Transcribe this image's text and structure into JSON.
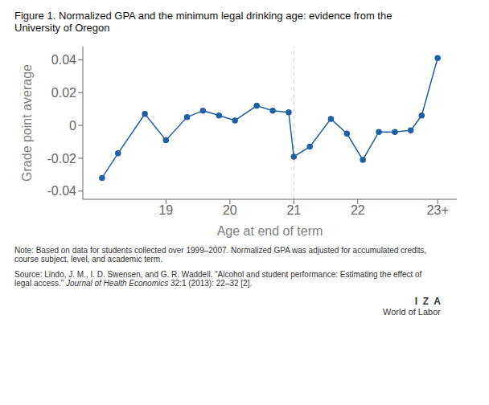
{
  "chart_data": {
    "type": "line",
    "title": "Figure 1. Normalized GPA and the minimum legal drinking age: evidence from the\nUniversity of Oregon",
    "x_label": "Age at end of term",
    "y_label": "Grade point average",
    "x": [
      18.0,
      18.25,
      18.67,
      19.0,
      19.33,
      19.58,
      19.83,
      20.08,
      20.42,
      20.67,
      20.92,
      21.0,
      21.25,
      21.58,
      21.83,
      22.08,
      22.33,
      22.58,
      22.83,
      23.0,
      23.25
    ],
    "values": [
      -0.032,
      -0.017,
      0.007,
      -0.009,
      0.005,
      0.009,
      0.006,
      0.003,
      0.012,
      0.009,
      0.008,
      -0.019,
      -0.013,
      0.004,
      -0.005,
      -0.021,
      -0.004,
      -0.004,
      -0.003,
      0.006,
      0.041
    ],
    "color": "#1F5FA6",
    "marker": "circle",
    "xlim": [
      17.7,
      23.55
    ],
    "ylim": [
      -0.045,
      0.048
    ],
    "xticks": [
      19,
      20,
      21,
      22,
      {
        "value": 23.25,
        "label": "23+"
      }
    ],
    "yticks": [
      -0.04,
      -0.02,
      0,
      0.02,
      0.04
    ],
    "vline": 21.0,
    "grid": false,
    "note": "Note: Based on data for students collected over 1999–2007. Normalized GPA was adjusted for accumulated credits,\ncourse subject, level, and academic term.",
    "source": [
      "Source: Lindo, J. M., I. D. Swensen, and G. R. Waddell. “Alcohol and student performance: Estimating the effect of\nlegal access.” ",
      "Journal of Health Economics",
      " 32:1 (2013): 22–32 [2]."
    ],
    "footer": [
      "I  Z  A",
      "World of Labor"
    ]
  }
}
